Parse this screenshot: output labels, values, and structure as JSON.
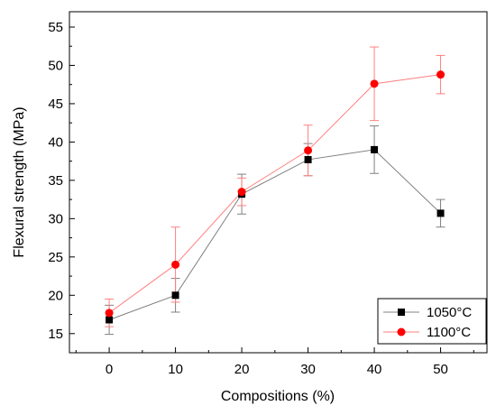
{
  "chart_data": {
    "type": "line",
    "xlabel": "Compositions (%)",
    "ylabel": "Flexural strength (MPa)",
    "x": [
      0,
      10,
      20,
      30,
      40,
      50
    ],
    "xticks": [
      "0",
      "10",
      "20",
      "30",
      "40",
      "50"
    ],
    "yticks": [
      "15",
      "20",
      "25",
      "30",
      "35",
      "40",
      "45",
      "50",
      "55"
    ],
    "xlim": [
      -6,
      57
    ],
    "ylim": [
      12.5,
      57
    ],
    "grid": false,
    "legend_position": "bottom-right",
    "series": [
      {
        "name": "1050°C",
        "color": "#000000",
        "line_color": "#808080",
        "marker": "square",
        "values": [
          16.8,
          20.0,
          33.2,
          37.7,
          39.0,
          30.7
        ],
        "errors": [
          1.9,
          2.2,
          2.6,
          2.1,
          3.1,
          1.8
        ]
      },
      {
        "name": "1100°C",
        "color": "#ff0000",
        "line_color": "#ff8080",
        "marker": "circle",
        "values": [
          17.7,
          24.0,
          33.5,
          38.9,
          47.6,
          48.8
        ],
        "errors": [
          1.8,
          4.9,
          1.8,
          3.3,
          4.8,
          2.5
        ]
      }
    ]
  }
}
